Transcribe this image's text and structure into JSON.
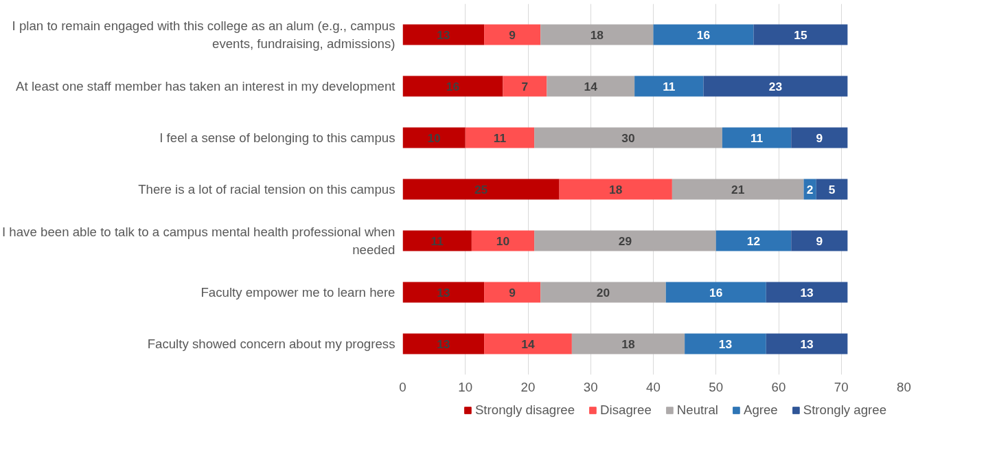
{
  "chart_data": {
    "type": "bar",
    "orientation": "horizontal",
    "stacked": true,
    "data_labels": true,
    "grid": "x",
    "legend": "bottom",
    "categories": [
      "I plan to remain engaged with this college as an alum (e.g., campus events, fundraising, admissions)",
      "At least one staff member has taken an interest in my development",
      "I feel a sense of belonging to this campus",
      "There is a lot of racial tension on this campus",
      "I have been able to talk to a campus mental health professional when needed",
      "Faculty empower me to learn here",
      "Faculty showed concern about my progress"
    ],
    "series": [
      {
        "name": "Strongly disagree",
        "color": "#c00000",
        "values": [
          13,
          16,
          10,
          25,
          11,
          13,
          13
        ]
      },
      {
        "name": "Disagree",
        "color": "#ff5050",
        "values": [
          9,
          7,
          11,
          18,
          10,
          9,
          14
        ]
      },
      {
        "name": "Neutral",
        "color": "#aeaaaa",
        "values": [
          18,
          14,
          30,
          21,
          29,
          20,
          18
        ]
      },
      {
        "name": "Agree",
        "color": "#2e75b6",
        "values": [
          16,
          11,
          11,
          2,
          12,
          16,
          13
        ]
      },
      {
        "name": "Strongly agree",
        "color": "#2f5597",
        "values": [
          15,
          23,
          9,
          5,
          9,
          13,
          13
        ]
      }
    ],
    "xlim": [
      0,
      80
    ],
    "xticks": [
      0,
      10,
      20,
      30,
      40,
      50,
      60,
      70,
      80
    ]
  }
}
